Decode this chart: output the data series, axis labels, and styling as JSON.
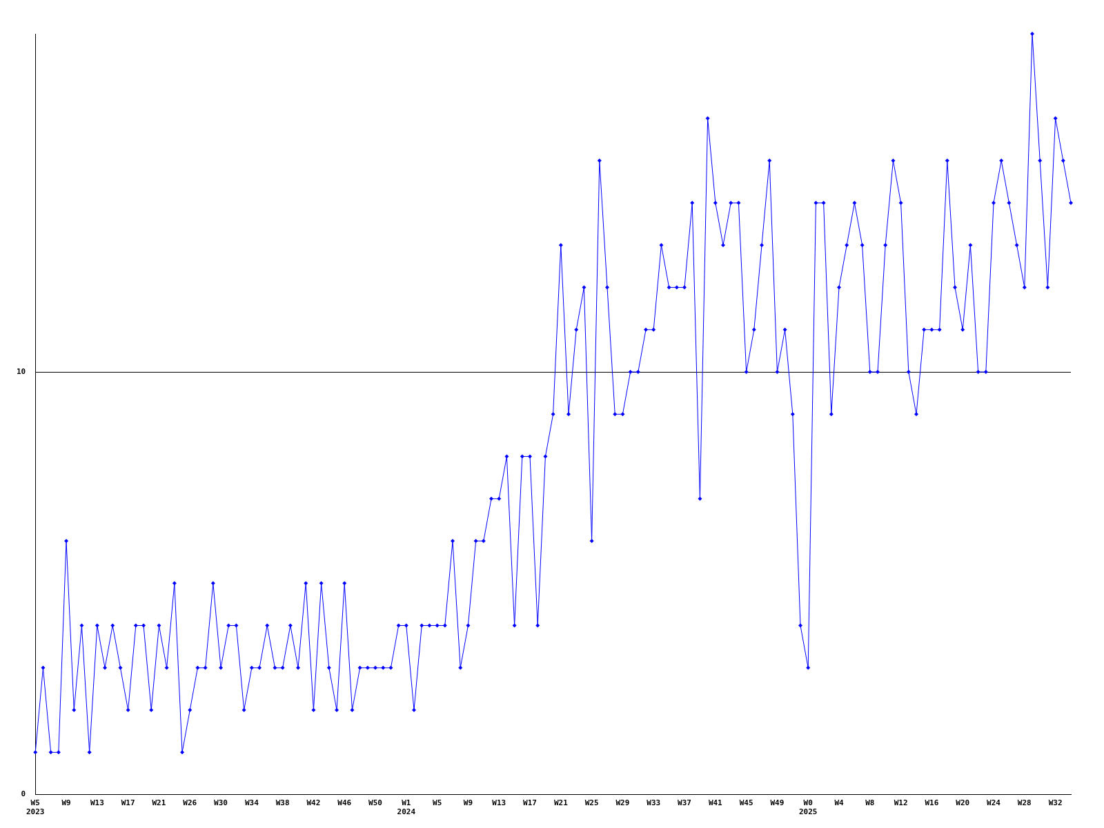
{
  "chart_data": {
    "type": "line",
    "categories": [
      "W5\n2023",
      null,
      null,
      null,
      "W9",
      null,
      null,
      null,
      "W13",
      null,
      null,
      null,
      "W17",
      null,
      null,
      null,
      "W21",
      null,
      null,
      null,
      "W26",
      null,
      null,
      null,
      "W30",
      null,
      null,
      null,
      "W34",
      null,
      null,
      null,
      "W38",
      null,
      null,
      null,
      "W42",
      null,
      null,
      null,
      "W46",
      null,
      null,
      null,
      "W50",
      null,
      null,
      null,
      "W1\n2024",
      null,
      null,
      null,
      "W5",
      null,
      null,
      null,
      "W9",
      null,
      null,
      null,
      "W13",
      null,
      null,
      null,
      "W17",
      null,
      null,
      null,
      "W21",
      null,
      null,
      null,
      "W25",
      null,
      null,
      null,
      "W29",
      null,
      null,
      null,
      "W33",
      null,
      null,
      null,
      "W37",
      null,
      null,
      null,
      "W41",
      null,
      null,
      null,
      "W45",
      null,
      null,
      null,
      "W49",
      null,
      null,
      null,
      "W0\n2025",
      null,
      null,
      null,
      "W4",
      null,
      null,
      null,
      "W8",
      null,
      null,
      null,
      "W12",
      null,
      null,
      null,
      "W16",
      null,
      null,
      null,
      "W20",
      null,
      null,
      null,
      "W24",
      null,
      null,
      null,
      "W28",
      null,
      null,
      null,
      "W32",
      null,
      null
    ],
    "series": [
      {
        "color": "#0000ff",
        "values": [
          1,
          3,
          1,
          1,
          6,
          2,
          4,
          1,
          4,
          3,
          4,
          3,
          2,
          4,
          4,
          2,
          4,
          3,
          5,
          1,
          2,
          3,
          3,
          5,
          3,
          4,
          4,
          2,
          3,
          3,
          4,
          3,
          3,
          4,
          3,
          5,
          2,
          5,
          3,
          2,
          5,
          2,
          3,
          3,
          3,
          3,
          3,
          4,
          4,
          2,
          4,
          4,
          4,
          4,
          6,
          3,
          4,
          6,
          6,
          7,
          7,
          8,
          4,
          8,
          8,
          4,
          8,
          9,
          13,
          9,
          11,
          12,
          6,
          15,
          12,
          9,
          9,
          10,
          10,
          11,
          11,
          13,
          12,
          12,
          12,
          14,
          7,
          16,
          14,
          13,
          14,
          14,
          10,
          11,
          13,
          15,
          10,
          11,
          9,
          4,
          3,
          14,
          14,
          9,
          12,
          13,
          14,
          13,
          10,
          10,
          13,
          15,
          14,
          10,
          9,
          11,
          11,
          11,
          15,
          12,
          11,
          13,
          10,
          10,
          14,
          15,
          14,
          13,
          12,
          18,
          15,
          12,
          16,
          15,
          14
        ]
      }
    ],
    "ylim": [
      0,
      18
    ],
    "yticks": [
      0,
      10
    ],
    "grid": "y",
    "legend": false,
    "marker": "diamond",
    "line_style": "solid"
  }
}
